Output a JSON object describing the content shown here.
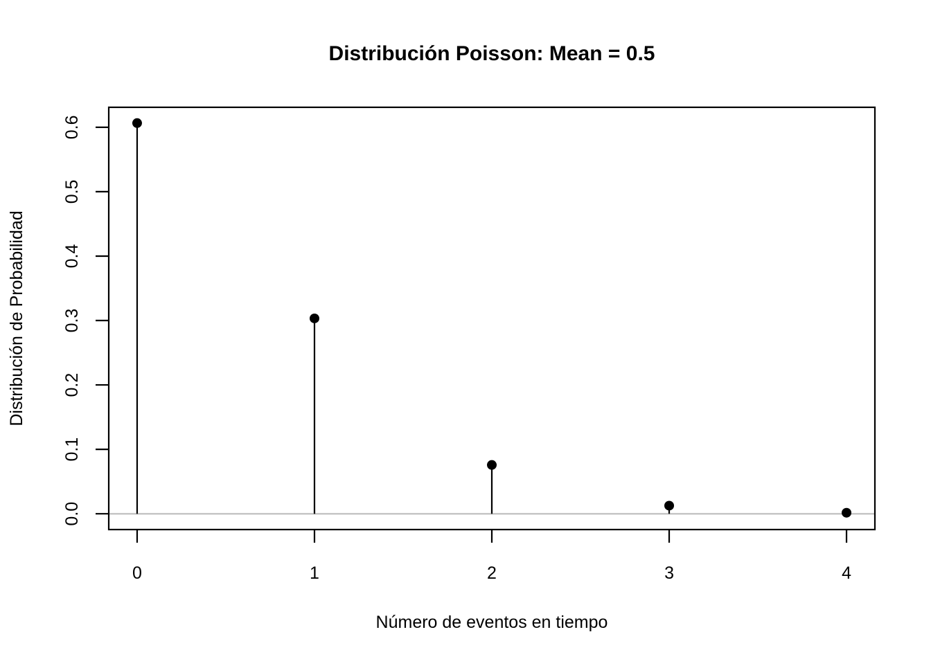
{
  "chart_data": {
    "type": "scatter",
    "style": "stem",
    "title": "Distribución Poisson: Mean = 0.5",
    "xlabel": "Número de eventos en tiempo",
    "ylabel": "Distribución de Probabilidad",
    "x": [
      0,
      1,
      2,
      3,
      4
    ],
    "y": [
      0.6065,
      0.3033,
      0.0758,
      0.0126,
      0.0016
    ],
    "x_ticks": [
      "0",
      "1",
      "2",
      "3",
      "4"
    ],
    "y_ticks": [
      "0.0",
      "0.1",
      "0.2",
      "0.3",
      "0.4",
      "0.5",
      "0.6"
    ],
    "xlim": [
      -0.16,
      4.16
    ],
    "ylim": [
      -0.0245,
      0.631
    ],
    "grid": false,
    "legend": null,
    "zero_line_value": 0,
    "colors": {
      "point": "#000000",
      "stem": "#000000",
      "frame": "#000000",
      "zero_line": "#c6c6c6",
      "background": "#ffffff"
    }
  }
}
